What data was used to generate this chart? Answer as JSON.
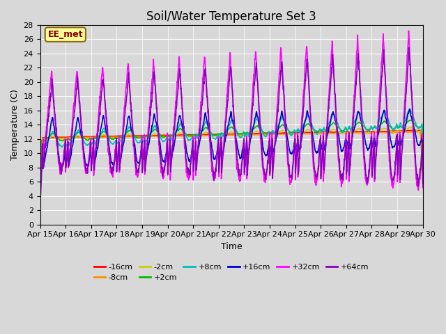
{
  "title": "Soil/Water Temperature Set 3",
  "xlabel": "Time",
  "ylabel": "Temperature (C)",
  "annotation": "EE_met",
  "ylim": [
    0,
    28
  ],
  "xlim": [
    0,
    15
  ],
  "x_tick_labels": [
    "Apr 15",
    "Apr 16",
    "Apr 17",
    "Apr 18",
    "Apr 19",
    "Apr 20",
    "Apr 21",
    "Apr 22",
    "Apr 23",
    "Apr 24",
    "Apr 25",
    "Apr 26",
    "Apr 27",
    "Apr 28",
    "Apr 29",
    "Apr 30"
  ],
  "bg_color": "#d8d8d8",
  "series": [
    {
      "label": "-16cm",
      "color": "#ff0000",
      "lw": 1.2
    },
    {
      "label": "-8cm",
      "color": "#ff8c00",
      "lw": 1.2
    },
    {
      "label": "-2cm",
      "color": "#cccc00",
      "lw": 1.2
    },
    {
      "label": "+2cm",
      "color": "#00bb00",
      "lw": 1.2
    },
    {
      "label": "+8cm",
      "color": "#00bbbb",
      "lw": 1.2
    },
    {
      "label": "+16cm",
      "color": "#0000cc",
      "lw": 1.2
    },
    {
      "label": "+32cm",
      "color": "#ff00ff",
      "lw": 1.2
    },
    {
      "label": "+64cm",
      "color": "#8800bb",
      "lw": 1.2
    }
  ],
  "title_fontsize": 12,
  "axis_fontsize": 9,
  "tick_fontsize": 8
}
